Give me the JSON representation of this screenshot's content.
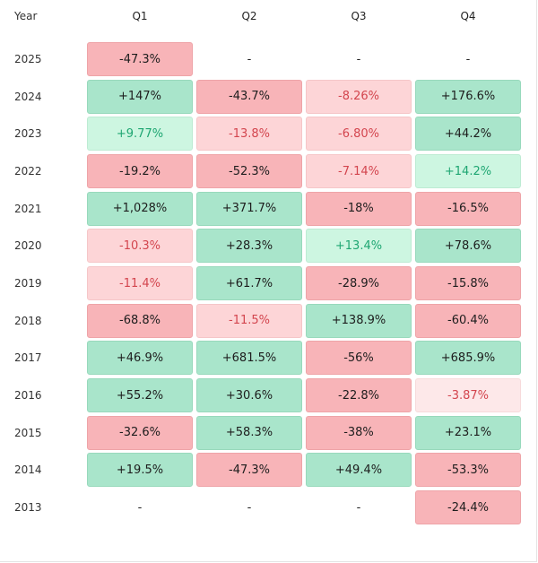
{
  "table": {
    "header": [
      "Year",
      "Q1",
      "Q2",
      "Q3",
      "Q4"
    ],
    "rows": [
      [
        "2025",
        "-47.3%",
        "-",
        "-",
        "-"
      ],
      [
        "2024",
        "+147%",
        "-43.7%",
        "-8.26%",
        "+176.6%"
      ],
      [
        "2023",
        "+9.77%",
        "-13.8%",
        "-6.80%",
        "+44.2%"
      ],
      [
        "2022",
        "-19.2%",
        "-52.3%",
        "-7.14%",
        "+14.2%"
      ],
      [
        "2021",
        "+1,028%",
        "+371.7%",
        "-18%",
        "-16.5%"
      ],
      [
        "2020",
        "-10.3%",
        "+28.3%",
        "+13.4%",
        "+78.6%"
      ],
      [
        "2019",
        "-11.4%",
        "+61.7%",
        "-28.9%",
        "-15.8%"
      ],
      [
        "2018",
        "-68.8%",
        "-11.5%",
        "+138.9%",
        "-60.4%"
      ],
      [
        "2017",
        "+46.9%",
        "+681.5%",
        "-56%",
        "+685.9%"
      ],
      [
        "2016",
        "+55.2%",
        "+30.6%",
        "-22.8%",
        "-3.87%"
      ],
      [
        "2015",
        "-32.6%",
        "+58.3%",
        "-38%",
        "+23.1%"
      ],
      [
        "2014",
        "+19.5%",
        "-47.3%",
        "+49.4%",
        "-53.3%"
      ],
      [
        "2013",
        "-",
        "-",
        "-",
        "-24.4%"
      ]
    ]
  }
}
